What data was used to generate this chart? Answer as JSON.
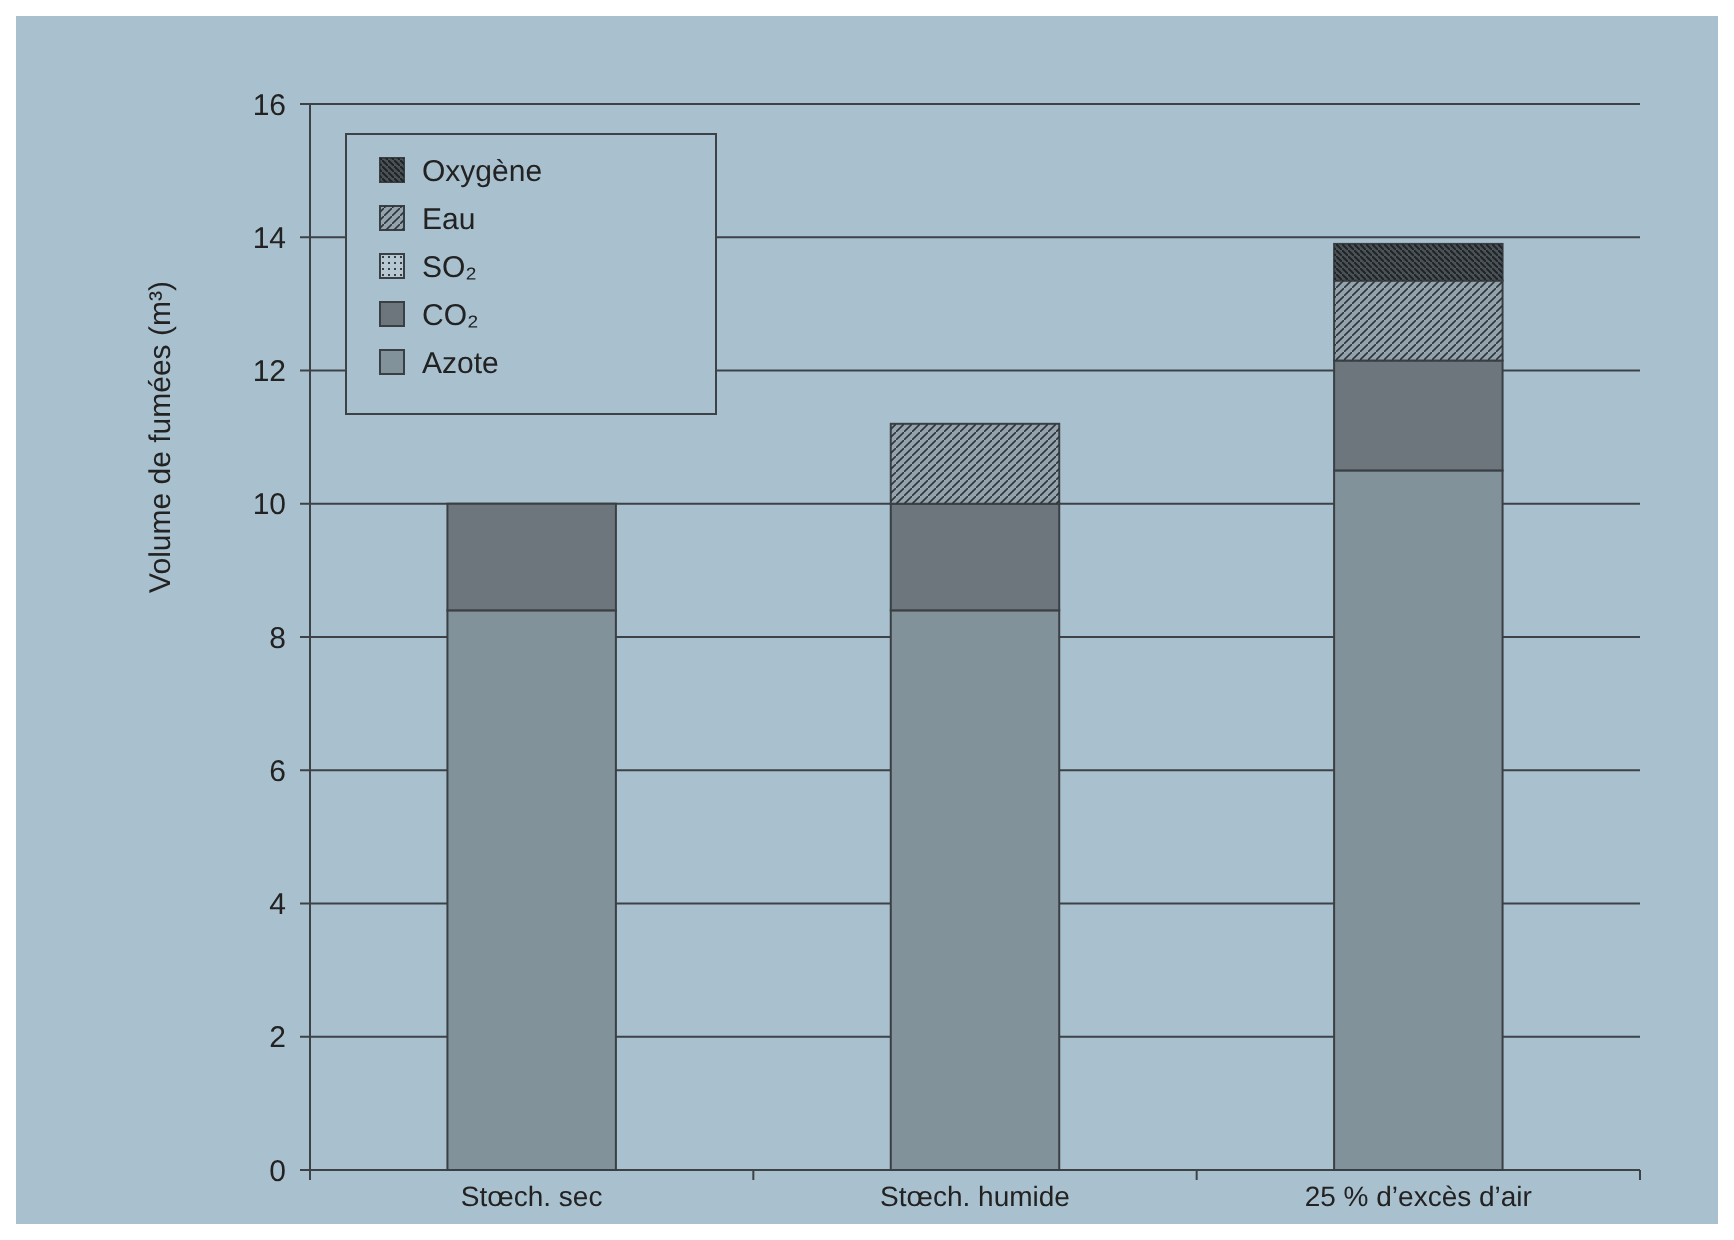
{
  "chart_data": {
    "type": "bar",
    "stacked": true,
    "ylabel": "Volume de fumées (m³)",
    "categories": [
      "Stœch. sec",
      "Stœch. humide",
      "25 % d’excès d’air"
    ],
    "ylim": [
      0,
      16
    ],
    "yticks": [
      0,
      2,
      4,
      6,
      8,
      10,
      12,
      14,
      16
    ],
    "grid": "y",
    "legend": "top left",
    "series": [
      {
        "name": "Azote",
        "color": "#82929a",
        "values": [
          8.4,
          8.4,
          10.5
        ]
      },
      {
        "name": "CO₂",
        "color": "#6d767d",
        "values": [
          1.6,
          1.6,
          1.65
        ]
      },
      {
        "name": "SO₂",
        "color": "#b8c8d2",
        "values": [
          0,
          0,
          0
        ]
      },
      {
        "name": "Eau",
        "color": "#93a3ad",
        "values": [
          0,
          1.2,
          1.2
        ]
      },
      {
        "name": "Oxygène",
        "color": "#4a5258",
        "values": [
          0,
          0,
          0.55
        ]
      }
    ]
  }
}
